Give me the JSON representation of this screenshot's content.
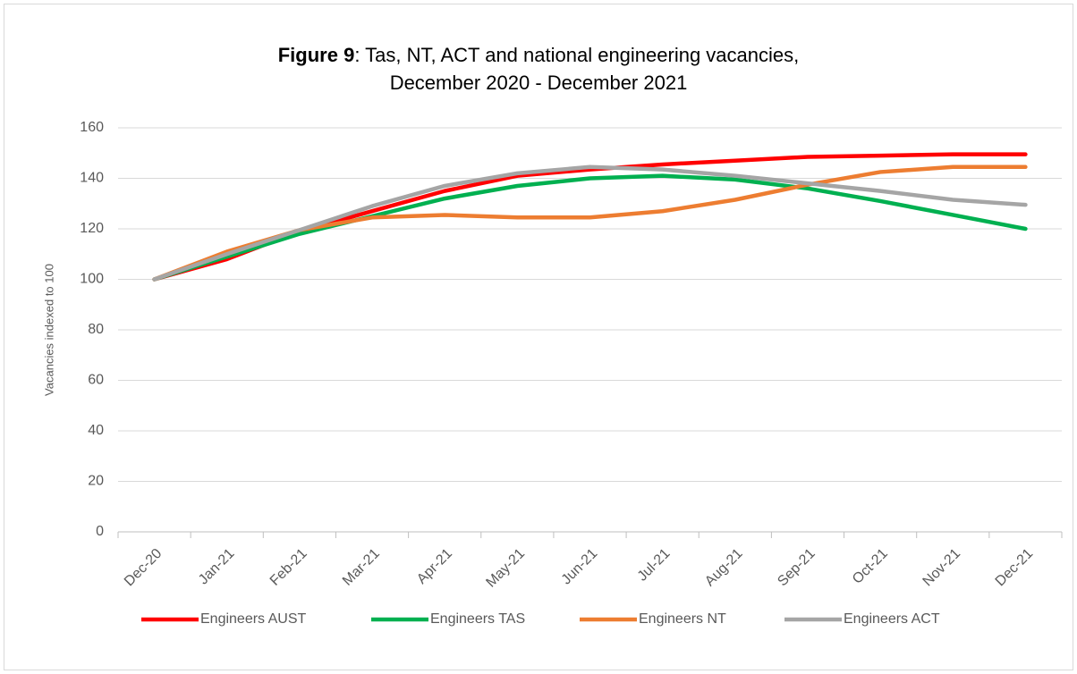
{
  "chart_data": {
    "type": "line",
    "title": [
      "Figure 9",
      ": Tas, NT, ACT and national engineering vacancies,",
      "December 2020 - December 2021"
    ],
    "y_label": "Vacancies indexed to 100",
    "categories": [
      "Dec-20",
      "Jan-21",
      "Feb-21",
      "Mar-21",
      "Apr-21",
      "May-21",
      "Jun-21",
      "Jul-21",
      "Aug-21",
      "Sep-21",
      "Oct-21",
      "Nov-21",
      "Dec-21"
    ],
    "series": [
      {
        "name": "Engineers AUST",
        "color": "#ff0000",
        "values": [
          100,
          108,
          119,
          127,
          135,
          141,
          143.5,
          145.5,
          147,
          148.5,
          149,
          149.5,
          149.5
        ]
      },
      {
        "name": "Engineers TAS",
        "color": "#00b050",
        "values": [
          100,
          109,
          118,
          125,
          132,
          137,
          140,
          141,
          139.5,
          136,
          131,
          125.5,
          120
        ]
      },
      {
        "name": "Engineers NT",
        "color": "#ed7d31",
        "values": [
          100,
          111,
          119.5,
          124.5,
          125.5,
          124.5,
          124.5,
          127,
          131.5,
          137.5,
          142.5,
          144.5,
          144.5
        ]
      },
      {
        "name": "Engineers ACT",
        "color": "#a5a5a5",
        "values": [
          100,
          110,
          119.5,
          129,
          137,
          142,
          144.5,
          143.5,
          141,
          138,
          135,
          131.5,
          129.5
        ]
      }
    ],
    "ylim": [
      0,
      160
    ],
    "yticks": [
      0,
      20,
      40,
      60,
      80,
      100,
      120,
      140,
      160
    ],
    "grid": true,
    "legend": "bottom"
  }
}
